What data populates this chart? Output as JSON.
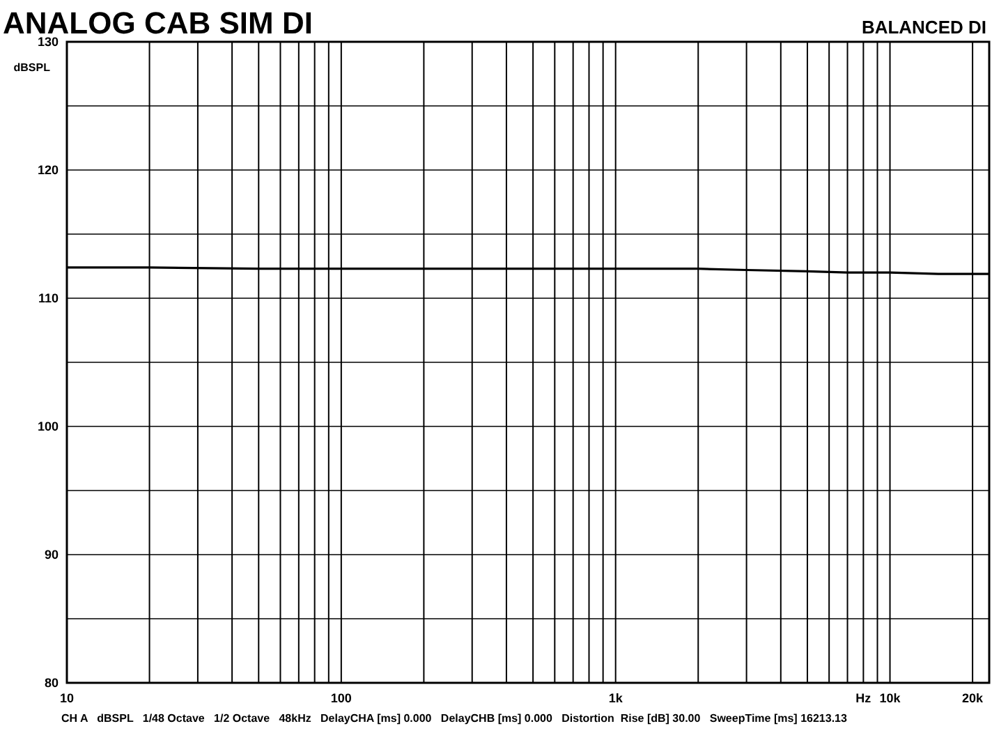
{
  "chart_data": {
    "type": "line",
    "title": "ANALOG CAB SIM DI",
    "subtitle": "BALANCED DI",
    "xlabel": "Hz",
    "ylabel": "dBSPL",
    "log": "x",
    "annotations": [
      "CH A   dBSPL   1/48 Octave   1/2 Octave   48kHz   DelayCHA [ms] 0.000   DelayCHB [ms] 0.000   Distortion  Rise [dB] 30.00   SweepTime [ms] 16213.13"
    ],
    "x": [
      10,
      20,
      50,
      100,
      200,
      500,
      1000,
      2000,
      3000,
      5000,
      7000,
      10000,
      15000,
      23000
    ],
    "series": [
      {
        "color": "#000000",
        "values": [
          112.4,
          112.4,
          112.3,
          112.3,
          112.3,
          112.3,
          112.3,
          112.3,
          112.2,
          112.1,
          112.0,
          112.0,
          111.9,
          111.9
        ]
      }
    ],
    "xlim": [
      10,
      23000
    ],
    "ylim": [
      80,
      130
    ],
    "xticks": [
      10,
      {
        "value": 20,
        "label": null
      },
      {
        "value": 30,
        "label": null
      },
      {
        "value": 40,
        "label": null
      },
      {
        "value": 50,
        "label": null
      },
      {
        "value": 60,
        "label": null
      },
      {
        "value": 70,
        "label": null
      },
      {
        "value": 80,
        "label": null
      },
      {
        "value": 90,
        "label": null
      },
      100,
      {
        "value": 200,
        "label": null
      },
      {
        "value": 300,
        "label": null
      },
      {
        "value": 400,
        "label": null
      },
      {
        "value": 500,
        "label": null
      },
      {
        "value": 600,
        "label": null
      },
      {
        "value": 700,
        "label": null
      },
      {
        "value": 800,
        "label": null
      },
      {
        "value": 900,
        "label": null
      },
      {
        "value": 1000,
        "label": "1k"
      },
      {
        "value": 2000,
        "label": null
      },
      {
        "value": 3000,
        "label": null
      },
      {
        "value": 4000,
        "label": null
      },
      {
        "value": 5000,
        "label": null
      },
      {
        "value": 6000,
        "label": null
      },
      {
        "value": 7000,
        "label": null
      },
      {
        "value": 8000,
        "label": null
      },
      {
        "value": 9000,
        "label": null
      },
      {
        "value": 10000,
        "label": "10k"
      },
      {
        "value": 20000,
        "label": "20k"
      }
    ],
    "yticks": [
      80,
      {
        "value": 85,
        "label": null
      },
      90,
      {
        "value": 95,
        "label": null
      },
      100,
      {
        "value": 105,
        "label": null
      },
      110,
      {
        "value": 115,
        "label": null
      },
      120,
      {
        "value": 125,
        "label": null
      },
      130
    ],
    "grid": true,
    "marker": "none",
    "line_style": "solid"
  }
}
